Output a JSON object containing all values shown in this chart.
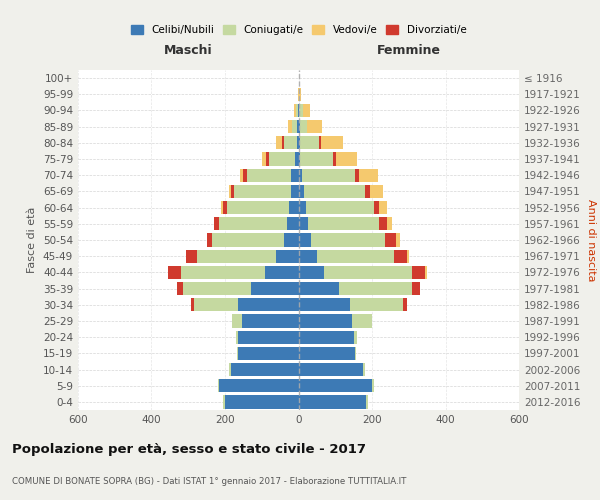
{
  "age_groups": [
    "0-4",
    "5-9",
    "10-14",
    "15-19",
    "20-24",
    "25-29",
    "30-34",
    "35-39",
    "40-44",
    "45-49",
    "50-54",
    "55-59",
    "60-64",
    "65-69",
    "70-74",
    "75-79",
    "80-84",
    "85-89",
    "90-94",
    "95-99",
    "100+"
  ],
  "birth_years": [
    "2012-2016",
    "2007-2011",
    "2002-2006",
    "1997-2001",
    "1992-1996",
    "1987-1991",
    "1982-1986",
    "1977-1981",
    "1972-1976",
    "1967-1971",
    "1962-1966",
    "1957-1961",
    "1952-1956",
    "1947-1951",
    "1942-1946",
    "1937-1941",
    "1932-1936",
    "1927-1931",
    "1922-1926",
    "1917-1921",
    "≤ 1916"
  ],
  "male": {
    "celibi": [
      200,
      215,
      185,
      165,
      165,
      155,
      165,
      130,
      90,
      60,
      40,
      30,
      25,
      20,
      20,
      10,
      5,
      3,
      2,
      0,
      0
    ],
    "coniugati": [
      5,
      5,
      5,
      2,
      5,
      25,
      120,
      185,
      230,
      215,
      195,
      185,
      170,
      155,
      120,
      70,
      35,
      15,
      5,
      0,
      0
    ],
    "vedovi": [
      0,
      0,
      0,
      0,
      0,
      0,
      0,
      0,
      0,
      0,
      0,
      0,
      5,
      5,
      10,
      10,
      15,
      10,
      5,
      2,
      0
    ],
    "divorziati": [
      0,
      0,
      0,
      0,
      0,
      0,
      8,
      15,
      35,
      30,
      15,
      15,
      10,
      10,
      10,
      8,
      5,
      0,
      0,
      0,
      0
    ]
  },
  "female": {
    "nubili": [
      185,
      200,
      175,
      155,
      150,
      145,
      140,
      110,
      70,
      50,
      35,
      25,
      20,
      15,
      10,
      5,
      5,
      3,
      2,
      0,
      0
    ],
    "coniugate": [
      5,
      5,
      5,
      2,
      10,
      55,
      145,
      200,
      240,
      210,
      200,
      195,
      185,
      165,
      145,
      90,
      50,
      20,
      10,
      2,
      0
    ],
    "vedove": [
      0,
      0,
      0,
      0,
      0,
      0,
      0,
      0,
      5,
      5,
      10,
      15,
      20,
      35,
      50,
      55,
      60,
      40,
      20,
      5,
      0
    ],
    "divorziate": [
      0,
      0,
      0,
      0,
      0,
      0,
      10,
      20,
      35,
      35,
      30,
      20,
      15,
      15,
      10,
      8,
      5,
      0,
      0,
      0,
      0
    ]
  },
  "colors": {
    "celibi": "#3d7ab5",
    "coniugati": "#c5d9a0",
    "vedovi": "#f5c96e",
    "divorziati": "#d03a2e"
  },
  "title": "Popolazione per età, sesso e stato civile - 2017",
  "subtitle": "COMUNE DI BONATE SOPRA (BG) - Dati ISTAT 1° gennaio 2017 - Elaborazione TUTTITALIA.IT",
  "xlabel_left": "Maschi",
  "xlabel_right": "Femmine",
  "ylabel_left": "Fasce di età",
  "ylabel_right": "Anni di nascita",
  "xlim": 600,
  "background_color": "#f0f0eb",
  "plot_bg": "#ffffff",
  "legend_labels": [
    "Celibi/Nubili",
    "Coniugati/e",
    "Vedovi/e",
    "Divorziati/e"
  ]
}
